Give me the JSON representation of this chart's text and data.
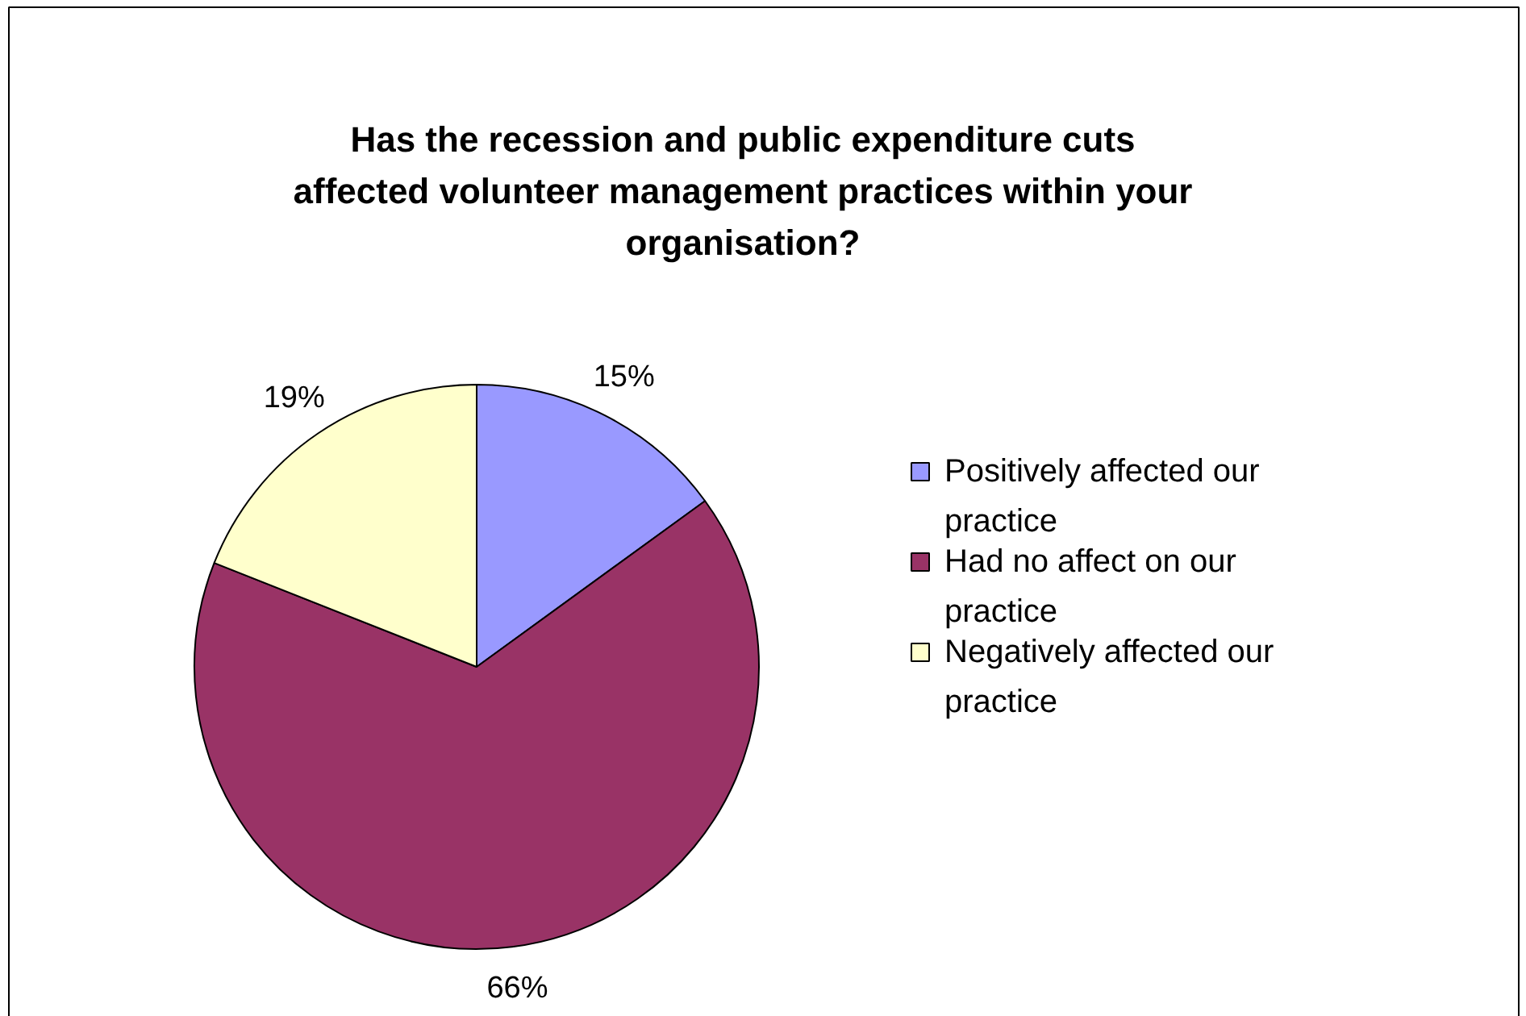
{
  "chart_data": {
    "type": "pie",
    "title": "Has the recession and public expenditure cuts affected volunteer management practices within your organisation?",
    "categories": [
      "Positively affected our practice",
      "Had no affect on our practice",
      "Negatively affected our practice"
    ],
    "values": [
      15,
      66,
      19
    ],
    "colors": [
      "#9999ff",
      "#993366",
      "#ffffcc"
    ],
    "value_labels": [
      "15%",
      "66%",
      "19%"
    ],
    "legend": "right"
  }
}
